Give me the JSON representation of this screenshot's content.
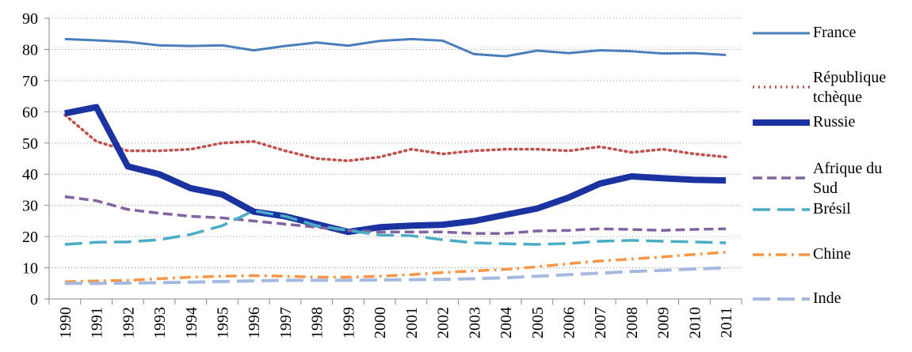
{
  "chart_data": {
    "type": "line",
    "categories": [
      "1990",
      "1991",
      "1992",
      "1993",
      "1994",
      "1995",
      "1996",
      "1997",
      "1998",
      "1999",
      "2000",
      "2001",
      "2002",
      "2003",
      "2004",
      "2005",
      "2006",
      "2007",
      "2008",
      "2009",
      "2010",
      "2011"
    ],
    "ylim": [
      0,
      90
    ],
    "yticks": [
      0,
      10,
      20,
      30,
      40,
      50,
      60,
      70,
      80,
      90
    ],
    "grid": true,
    "legend": "right",
    "series": [
      {
        "name": "France",
        "color": "#4a7ebb",
        "style": "solid",
        "width": 3,
        "values": [
          83.3,
          82.9,
          82.4,
          81.3,
          81.1,
          81.3,
          79.7,
          81.1,
          82.2,
          81.2,
          82.7,
          83.3,
          82.8,
          78.5,
          77.8,
          79.6,
          78.8,
          79.7,
          79.4,
          78.7,
          78.8,
          78.2
        ]
      },
      {
        "name": "République tchèque",
        "color": "#c0504d",
        "style": "dotted",
        "width": 3.5,
        "values": [
          59,
          50.5,
          47.5,
          47.5,
          48,
          50,
          50.5,
          47.5,
          45,
          44.3,
          45.5,
          48,
          46.5,
          47.5,
          48,
          48,
          47.5,
          48.8,
          47,
          48,
          46.5,
          45.5
        ]
      },
      {
        "name": "Russie",
        "color": "#1a33a0",
        "style": "solid",
        "width": 8,
        "values": [
          59.5,
          61.5,
          42.5,
          40,
          35.5,
          33.5,
          28,
          26.5,
          24,
          21.5,
          23,
          23.5,
          23.8,
          25,
          27,
          29,
          32.5,
          37,
          39.3,
          38.7,
          38.2,
          38
        ]
      },
      {
        "name": "Afrique du Sud",
        "color": "#8064a2",
        "style": "dashed",
        "width": 3.5,
        "values": [
          32.8,
          31.5,
          28.7,
          27.5,
          26.5,
          26,
          25,
          24,
          23,
          22,
          21.5,
          21.5,
          21.5,
          21,
          21,
          21.8,
          22,
          22.5,
          22.3,
          22,
          22.3,
          22.5
        ]
      },
      {
        "name": "Brésil",
        "color": "#4bacc6",
        "style": "longdash",
        "width": 3.5,
        "values": [
          17.5,
          18.2,
          18.3,
          19,
          20.7,
          23.5,
          28.3,
          26.5,
          23.5,
          22,
          20.5,
          20.3,
          19,
          18,
          17.7,
          17.5,
          17.8,
          18.5,
          18.8,
          18.5,
          18.3,
          18
        ]
      },
      {
        "name": "Chine",
        "color": "#f79646",
        "style": "dashdot",
        "width": 3.5,
        "values": [
          5.5,
          5.8,
          6,
          6.5,
          7,
          7.3,
          7.5,
          7.3,
          7,
          7,
          7.3,
          7.8,
          8.5,
          9,
          9.5,
          10.3,
          11.3,
          12.2,
          12.8,
          13.5,
          14.3,
          15
        ]
      },
      {
        "name": "Inde",
        "color": "#a5b9de",
        "style": "longdash",
        "width": 4,
        "values": [
          5,
          5,
          5.1,
          5.2,
          5.4,
          5.6,
          5.8,
          6,
          6,
          6,
          6.1,
          6.2,
          6.3,
          6.5,
          6.8,
          7.3,
          7.8,
          8.3,
          8.8,
          9.2,
          9.6,
          10
        ]
      }
    ]
  }
}
